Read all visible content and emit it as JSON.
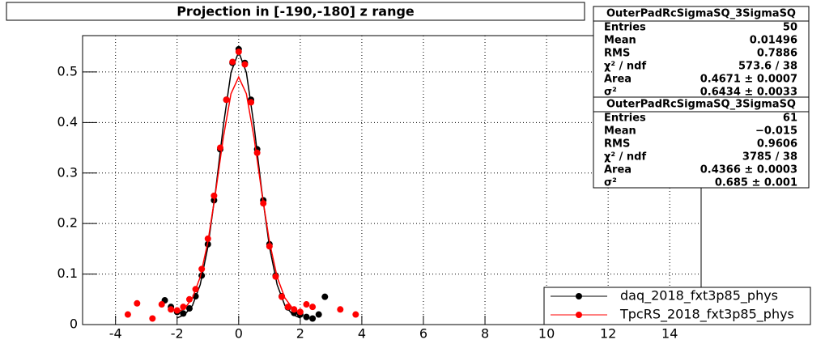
{
  "chart_data": {
    "type": "scatter",
    "title": "Projection in [-190,-180] z range",
    "xlim": [
      -5.07,
      15.02
    ],
    "ylim": [
      0,
      0.572
    ],
    "xticks": [
      -4,
      -2,
      0,
      2,
      4,
      6,
      8,
      10,
      12,
      14
    ],
    "yticks": [
      0,
      0.1,
      0.2,
      0.3,
      0.4,
      0.5
    ],
    "grid": true,
    "legend": "bottom-right",
    "series": [
      {
        "name": "daq_2018_fxt3p85_phys",
        "color": "#000000",
        "x": [
          -2.4,
          -2.2,
          -2.0,
          -1.8,
          -1.6,
          -1.4,
          -1.2,
          -1.0,
          -0.8,
          -0.6,
          -0.4,
          -0.2,
          0,
          0.2,
          0.4,
          0.6,
          0.8,
          1.0,
          1.2,
          1.4,
          1.6,
          1.8,
          2.0,
          2.2,
          2.4,
          2.6,
          2.8
        ],
        "values": [
          0.048,
          0.035,
          0.025,
          0.022,
          0.032,
          0.056,
          0.097,
          0.159,
          0.246,
          0.347,
          0.445,
          0.518,
          0.545,
          0.518,
          0.445,
          0.347,
          0.246,
          0.159,
          0.097,
          0.056,
          0.034,
          0.023,
          0.02,
          0.015,
          0.012,
          0.02,
          0.055
        ],
        "fit": {
          "x": [
            -2,
            -1.75,
            -1.5,
            -1.25,
            -1,
            -0.75,
            -0.5,
            -0.25,
            0,
            0.25,
            0.5,
            0.75,
            1,
            1.25,
            1.5,
            1.75,
            2
          ],
          "values": [
            0.013,
            0.02,
            0.038,
            0.079,
            0.154,
            0.265,
            0.393,
            0.499,
            0.54,
            0.499,
            0.393,
            0.265,
            0.154,
            0.079,
            0.038,
            0.02,
            0.013
          ]
        }
      },
      {
        "name": "TpcRS_2018_fxt3p85_phys",
        "color": "#ff0000",
        "x": [
          -3.6,
          -3.3,
          -2.8,
          -2.5,
          -2.2,
          -2.0,
          -1.8,
          -1.6,
          -1.4,
          -1.2,
          -1.0,
          -0.8,
          -0.6,
          -0.4,
          -0.2,
          0,
          0.2,
          0.4,
          0.6,
          0.8,
          1.0,
          1.2,
          1.4,
          1.6,
          1.8,
          2.0,
          2.2,
          2.4,
          3.3,
          3.8
        ],
        "values": [
          0.02,
          0.042,
          0.012,
          0.04,
          0.03,
          0.028,
          0.035,
          0.05,
          0.07,
          0.11,
          0.17,
          0.255,
          0.35,
          0.445,
          0.52,
          0.54,
          0.515,
          0.44,
          0.34,
          0.24,
          0.155,
          0.095,
          0.055,
          0.035,
          0.03,
          0.025,
          0.04,
          0.035,
          0.03,
          0.02
        ],
        "fit": {
          "x": [
            -2,
            -1.75,
            -1.5,
            -1.25,
            -1,
            -0.75,
            -0.5,
            -0.25,
            0,
            0.25,
            0.5,
            0.75,
            1,
            1.25,
            1.5,
            1.75,
            2
          ],
          "values": [
            0.024,
            0.032,
            0.053,
            0.094,
            0.164,
            0.262,
            0.37,
            0.457,
            0.49,
            0.457,
            0.37,
            0.262,
            0.164,
            0.094,
            0.053,
            0.032,
            0.024
          ]
        }
      }
    ],
    "stats": [
      {
        "title": "OuterPadRcSigmaSQ_3SigmaSQ",
        "rows": [
          [
            "Entries",
            "50"
          ],
          [
            "Mean",
            "0.01496"
          ],
          [
            "RMS",
            "0.7886"
          ],
          [
            "χ² / ndf",
            "573.6 / 38"
          ],
          [
            "Area",
            "0.4671 ± 0.0007"
          ],
          [
            "σ²",
            "0.6434 ± 0.0033"
          ]
        ]
      },
      {
        "title": "OuterPadRcSigmaSQ_3SigmaSQ",
        "rows": [
          [
            "Entries",
            "61"
          ],
          [
            "Mean",
            "−0.015"
          ],
          [
            "RMS",
            "0.9606"
          ],
          [
            "χ² / ndf",
            "3785 / 38"
          ],
          [
            "Area",
            "0.4366 ± 0.0003"
          ],
          [
            "σ²",
            "0.685 ± 0.001"
          ]
        ]
      }
    ]
  }
}
